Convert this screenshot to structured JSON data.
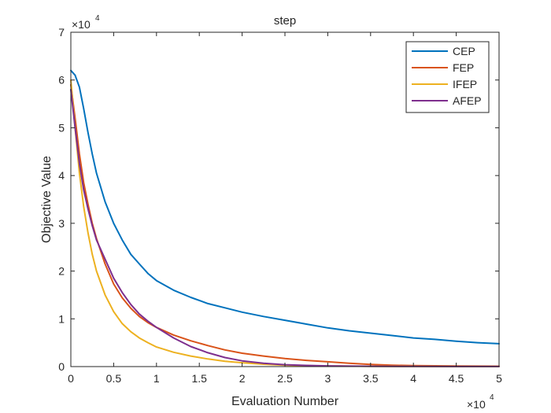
{
  "chart_data": {
    "type": "line",
    "title": "step",
    "xlabel": "Evaluation Number",
    "ylabel": "Objective Value",
    "x_exponent": "×10",
    "x_exponent_power": "4",
    "y_exponent": "×10",
    "y_exponent_power": "4",
    "x_scale_factor": 10000,
    "y_scale_factor": 10000,
    "xlim": [
      0,
      50000
    ],
    "ylim": [
      0,
      70000
    ],
    "x_ticks": [
      0,
      5000,
      10000,
      15000,
      20000,
      25000,
      30000,
      35000,
      40000,
      45000,
      50000
    ],
    "x_tick_labels": [
      "0",
      "0.5",
      "1",
      "1.5",
      "2",
      "2.5",
      "3",
      "3.5",
      "4",
      "4.5",
      "5"
    ],
    "y_ticks": [
      0,
      10000,
      20000,
      30000,
      40000,
      50000,
      60000,
      70000
    ],
    "y_tick_labels": [
      "0",
      "1",
      "2",
      "3",
      "4",
      "5",
      "6",
      "7"
    ],
    "grid": false,
    "legend_position": "top-right",
    "series": [
      {
        "name": "CEP",
        "color": "#0072BD",
        "x": [
          0,
          500,
          1000,
          1500,
          2000,
          2500,
          3000,
          4000,
          5000,
          6000,
          7000,
          8000,
          9000,
          10000,
          12000,
          14000,
          16000,
          18000,
          20000,
          22500,
          25000,
          27500,
          30000,
          32500,
          35000,
          37500,
          40000,
          42500,
          45000,
          47500,
          50000
        ],
        "y": [
          62000,
          61000,
          58500,
          54000,
          49000,
          44500,
          40500,
          34500,
          30000,
          26500,
          23500,
          21500,
          19500,
          18000,
          16000,
          14500,
          13200,
          12300,
          11400,
          10500,
          9700,
          8900,
          8100,
          7500,
          7000,
          6500,
          6000,
          5700,
          5300,
          5000,
          4800
        ]
      },
      {
        "name": "FEP",
        "color": "#D95319",
        "x": [
          0,
          500,
          1000,
          1500,
          2000,
          2500,
          3000,
          4000,
          5000,
          6000,
          7000,
          8000,
          9000,
          10000,
          12000,
          14000,
          16000,
          18000,
          20000,
          22500,
          25000,
          27500,
          30000,
          32500,
          35000,
          37500,
          40000,
          45000,
          50000
        ],
        "y": [
          59000,
          52000,
          44500,
          38500,
          34000,
          30000,
          26800,
          21500,
          17300,
          14400,
          12200,
          10500,
          9200,
          8200,
          6600,
          5400,
          4400,
          3500,
          2800,
          2200,
          1700,
          1300,
          1000,
          700,
          450,
          300,
          200,
          120,
          80
        ]
      },
      {
        "name": "IFEP",
        "color": "#EDB120",
        "x": [
          0,
          500,
          1000,
          1500,
          2000,
          2500,
          3000,
          4000,
          5000,
          6000,
          7000,
          8000,
          9000,
          10000,
          12000,
          14000,
          16000,
          18000,
          20000,
          22500,
          25000,
          27500,
          30000,
          35000,
          40000,
          45000,
          50000
        ],
        "y": [
          60000,
          50000,
          40500,
          33500,
          28000,
          23500,
          20000,
          15000,
          11500,
          9000,
          7300,
          6000,
          5000,
          4100,
          3000,
          2200,
          1600,
          1100,
          800,
          500,
          300,
          200,
          120,
          60,
          30,
          20,
          10
        ]
      },
      {
        "name": "AFEP",
        "color": "#7E2F8E",
        "x": [
          0,
          500,
          1000,
          1500,
          2000,
          2500,
          3000,
          4000,
          5000,
          6000,
          7000,
          8000,
          9000,
          10000,
          12000,
          14000,
          16000,
          18000,
          20000,
          22500,
          25000,
          27500,
          30000,
          35000,
          40000,
          45000,
          50000
        ],
        "y": [
          58000,
          50000,
          42500,
          37000,
          33000,
          29500,
          26500,
          22500,
          18500,
          15500,
          13000,
          11000,
          9500,
          8200,
          6000,
          4200,
          2900,
          1900,
          1200,
          700,
          400,
          250,
          150,
          60,
          30,
          20,
          10
        ]
      }
    ]
  }
}
